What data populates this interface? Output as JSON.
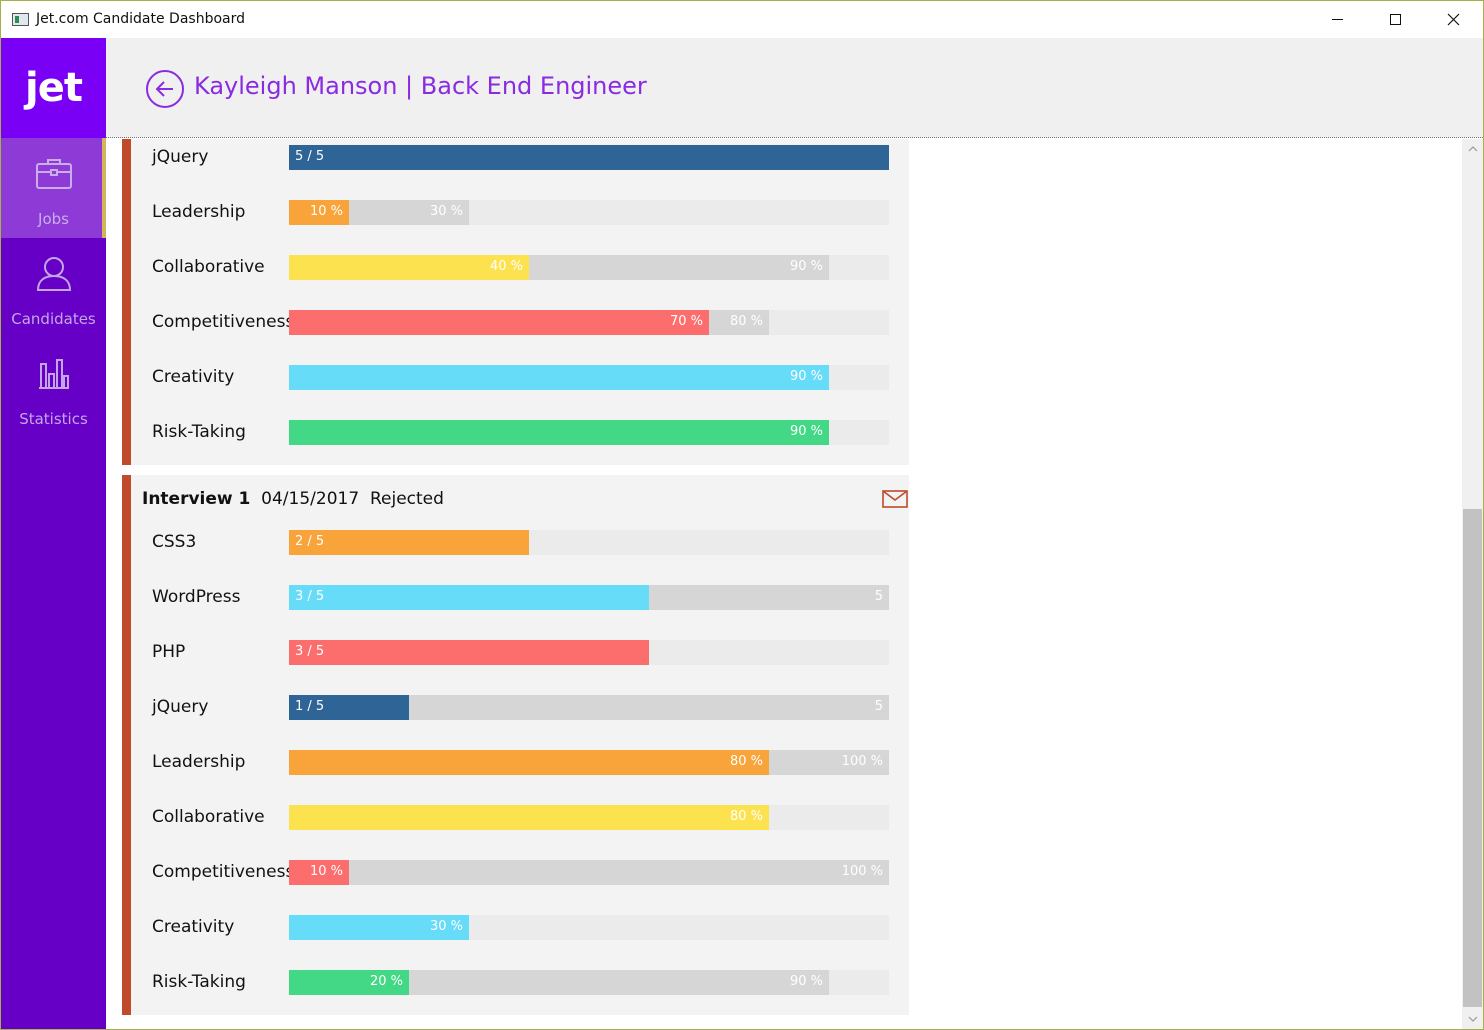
{
  "window": {
    "title": "Jet.com Candidate Dashboard"
  },
  "sidebar": {
    "logo": "jet",
    "items": [
      {
        "label": "Jobs",
        "icon": "briefcase-icon",
        "active": true
      },
      {
        "label": "Candidates",
        "icon": "person-icon",
        "active": false
      },
      {
        "label": "Statistics",
        "icon": "bar-chart-icon",
        "active": false
      }
    ]
  },
  "header": {
    "title": "Kayleigh Manson | Back End Engineer",
    "back_icon": "back-arrow-icon"
  },
  "colors": {
    "accent": "#8a2be2",
    "sidebar": "#6600c6",
    "card_border": "#bf4a2c",
    "blue": "#2f6496",
    "orange": "#f9a43a",
    "yellow": "#fde24f",
    "red": "#fc6e6e",
    "cyan": "#67dcf8",
    "green": "#43d886"
  },
  "interview_prev": {
    "rows": [
      {
        "label": "jQuery",
        "value": 1.0,
        "range": null,
        "value_text": "5 / 5",
        "range_text": "",
        "color": "#2f6496",
        "type": "skill"
      },
      {
        "label": "Leadership",
        "value": 0.1,
        "range": 0.3,
        "value_text": "10 %",
        "range_text": "30 %",
        "color": "#f9a43a",
        "type": "trait"
      },
      {
        "label": "Collaborative",
        "value": 0.4,
        "range": 0.9,
        "value_text": "40 %",
        "range_text": "90 %",
        "color": "#fde24f",
        "type": "trait"
      },
      {
        "label": "Competitiveness",
        "value": 0.7,
        "range": 0.8,
        "value_text": "70 %",
        "range_text": "80 %",
        "color": "#fc6e6e",
        "type": "trait"
      },
      {
        "label": "Creativity",
        "value": 0.9,
        "range": 0.9,
        "value_text": "90 %",
        "range_text": "",
        "color": "#67dcf8",
        "type": "trait"
      },
      {
        "label": "Risk-Taking",
        "value": 0.9,
        "range": 0.9,
        "value_text": "90 %",
        "range_text": "",
        "color": "#43d886",
        "type": "trait"
      }
    ]
  },
  "interview_1": {
    "title": "Interview 1",
    "date": "04/15/2017",
    "status": "Rejected",
    "mail_icon": "mail-icon",
    "rows": [
      {
        "label": "CSS3",
        "value": 0.4,
        "range": null,
        "value_text": "2 / 5",
        "range_text": "",
        "color": "#f9a43a",
        "type": "skill"
      },
      {
        "label": "WordPress",
        "value": 0.6,
        "range": 1.0,
        "value_text": "3 / 5",
        "range_text": "5",
        "color": "#67dcf8",
        "type": "skill"
      },
      {
        "label": "PHP",
        "value": 0.6,
        "range": null,
        "value_text": "3 / 5",
        "range_text": "",
        "color": "#fc6e6e",
        "type": "skill"
      },
      {
        "label": "jQuery",
        "value": 0.2,
        "range": 1.0,
        "value_text": "1 / 5",
        "range_text": "5",
        "color": "#2f6496",
        "type": "skill"
      },
      {
        "label": "Leadership",
        "value": 0.8,
        "range": 1.0,
        "value_text": "80 %",
        "range_text": "100 %",
        "color": "#f9a43a",
        "type": "trait"
      },
      {
        "label": "Collaborative",
        "value": 0.8,
        "range": null,
        "value_text": "80 %",
        "range_text": "",
        "color": "#fde24f",
        "type": "trait"
      },
      {
        "label": "Competitiveness",
        "value": 0.1,
        "range": 1.0,
        "value_text": "10 %",
        "range_text": "100 %",
        "color": "#fc6e6e",
        "type": "trait"
      },
      {
        "label": "Creativity",
        "value": 0.3,
        "range": null,
        "value_text": "30 %",
        "range_text": "",
        "color": "#67dcf8",
        "type": "trait"
      },
      {
        "label": "Risk-Taking",
        "value": 0.2,
        "range": 0.9,
        "value_text": "20 %",
        "range_text": "90 %",
        "color": "#43d886",
        "type": "trait"
      }
    ]
  }
}
